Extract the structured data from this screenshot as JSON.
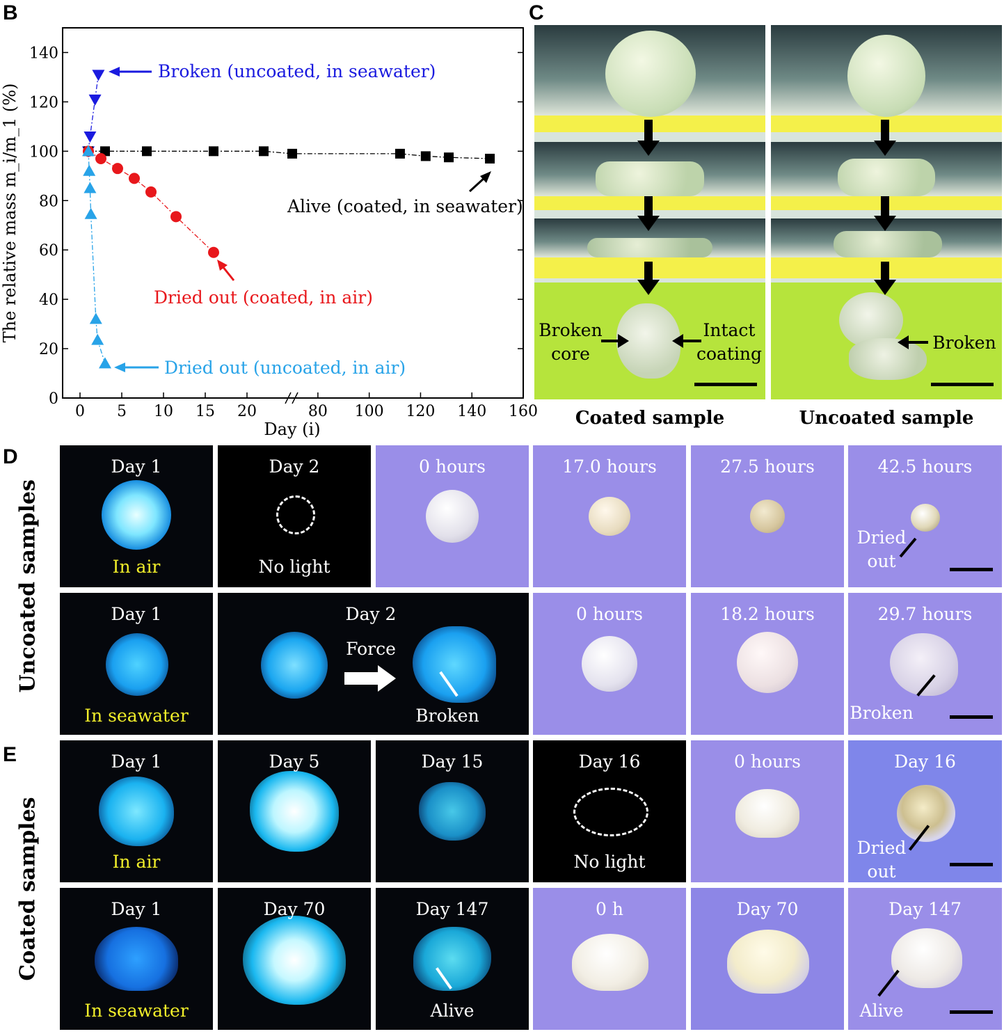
{
  "panels": {
    "B": "B",
    "C": "C",
    "D": "D",
    "E": "E"
  },
  "chart_data": {
    "type": "scatter",
    "title": "",
    "xlabel": "Day (i)",
    "ylabel": "The relative mass m_i/m_1 (%)",
    "ylim": [
      0,
      150
    ],
    "y_ticks": [
      "0",
      "20",
      "40",
      "60",
      "80",
      "100",
      "120",
      "140"
    ],
    "x_ticks_left": [
      "0",
      "5",
      "10",
      "15",
      "20"
    ],
    "x_ticks_right": [
      "80",
      "100",
      "120",
      "140",
      "160"
    ],
    "x_axis_break": "between 25 and 70",
    "series": [
      {
        "name": "Broken (uncoated, in seawater)",
        "color": "#1a1adf",
        "marker": "triangle-down",
        "points": [
          [
            1,
            100
          ],
          [
            1.2,
            106
          ],
          [
            1.8,
            121
          ],
          [
            2.2,
            131
          ]
        ]
      },
      {
        "name": "Alive (coated, in seawater)",
        "color": "#000000",
        "marker": "square",
        "points": [
          [
            1,
            100
          ],
          [
            3,
            100
          ],
          [
            8,
            100
          ],
          [
            16,
            100
          ],
          [
            22,
            100
          ],
          [
            70,
            99
          ],
          [
            112,
            99
          ],
          [
            122,
            98
          ],
          [
            131,
            97.5
          ],
          [
            147,
            97
          ]
        ]
      },
      {
        "name": "Dried out (coated, in air)",
        "color": "#e8171b",
        "marker": "circle",
        "points": [
          [
            1,
            100
          ],
          [
            2.5,
            97
          ],
          [
            4.5,
            93
          ],
          [
            6.5,
            89
          ],
          [
            8.5,
            83.5
          ],
          [
            11.5,
            73.5
          ],
          [
            16,
            59
          ]
        ]
      },
      {
        "name": "Dried out (uncoated, in air)",
        "color": "#28a3e8",
        "marker": "triangle-up",
        "points": [
          [
            1,
            100
          ],
          [
            1.1,
            92
          ],
          [
            1.2,
            85
          ],
          [
            1.3,
            74.5
          ],
          [
            1.9,
            32
          ],
          [
            2.1,
            23.5
          ],
          [
            3,
            14
          ]
        ]
      }
    ],
    "annotations": [
      "Broken (uncoated, in seawater)",
      "Alive (coated, in seawater)",
      "Dried out (coated, in air)",
      "Dried out (uncoated, in air)"
    ]
  },
  "panel_c": {
    "broken_core": "Broken\ncore",
    "intact_coating": "Intact\ncoating",
    "broken": "Broken",
    "caption_coated": "Coated sample",
    "caption_uncoated": "Uncoated sample"
  },
  "side_labels": {
    "uncoated": "Uncoated samples",
    "coated": "Coated samples"
  },
  "row_d1": {
    "t1_top": "Day 1",
    "t1_bottom": "In air",
    "t2_top": "Day 2",
    "t2_bottom": "No light",
    "t3_top": "0 hours",
    "t4_top": "17.0 hours",
    "t5_top": "27.5 hours",
    "t6_top": "42.5 hours",
    "t6_note": "Dried\nout"
  },
  "row_d2": {
    "t1_top": "Day 1",
    "t1_bottom": "In seawater",
    "t2_top": "Day 2",
    "t2_force": "Force",
    "t2_bottom": "Broken",
    "t3_top": "0 hours",
    "t4_top": "18.2 hours",
    "t5_top": "29.7 hours",
    "t5_note": "Broken"
  },
  "row_e1": {
    "t1_top": "Day 1",
    "t1_bottom": "In air",
    "t2_top": "Day 5",
    "t3_top": "Day 15",
    "t4_top": "Day 16",
    "t4_bottom": "No light",
    "t5_top": "0 hours",
    "t6_top": "Day 16",
    "t6_note": "Dried\nout"
  },
  "row_e2": {
    "t1_top": "Day 1",
    "t1_bottom": "In seawater",
    "t2_top": "Day 70",
    "t3_top": "Day 147",
    "t3_bottom": "Alive",
    "t4_top": "0 h",
    "t5_top": "Day 70",
    "t6_top": "Day 147",
    "t6_note": "Alive"
  }
}
